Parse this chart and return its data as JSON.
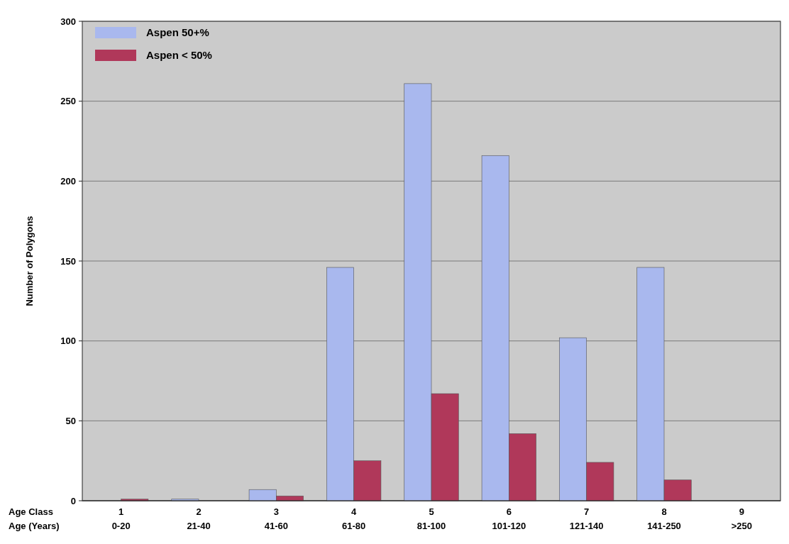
{
  "chart_data": {
    "type": "bar",
    "ylabel": "Number of Polygons",
    "categories": [
      "1\n0-20",
      "2\n21-40",
      "3\n41-60",
      "4\n61-80",
      "5\n81-100",
      "6\n101-120",
      "7\n121-140",
      "8\n141-250",
      "9\n>250"
    ],
    "annotations": [
      "Age Class",
      "Age (Years)"
    ],
    "series": [
      {
        "name": "Aspen 50+%",
        "color": "#a9b8ee",
        "values": [
          0,
          1,
          7,
          146,
          261,
          216,
          102,
          146,
          0
        ]
      },
      {
        "name": "Aspen < 50%",
        "color": "#b0385a",
        "values": [
          1,
          0,
          3,
          25,
          67,
          42,
          24,
          13,
          0
        ]
      }
    ],
    "ylim": [
      0,
      300
    ],
    "yticks": [
      0,
      50,
      100,
      150,
      200,
      250,
      300
    ],
    "grid": "y",
    "legend": "top left"
  }
}
